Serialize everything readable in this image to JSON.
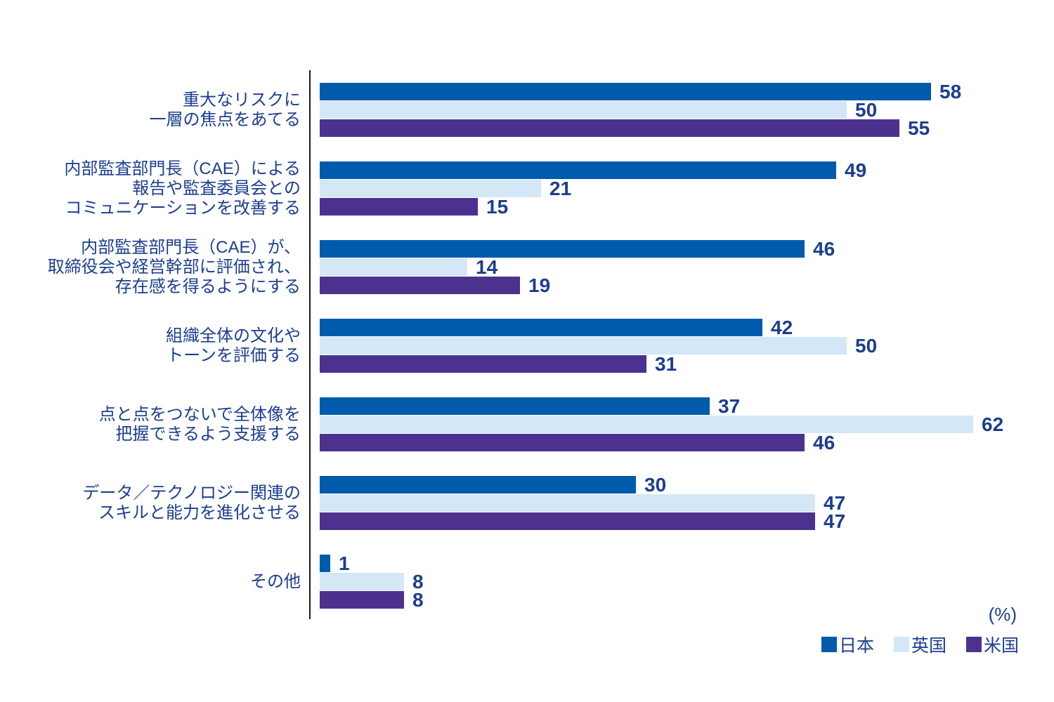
{
  "page": {
    "background": "#FFFFFF"
  },
  "colors": {
    "navy_text": "#1C3E8F",
    "axis_line": "#1A1A1A",
    "japan_blue": "#005BAC",
    "uk_light_blue": "#D3E7F6",
    "us_purple": "#4C318F"
  },
  "chart_data": {
    "type": "bar",
    "orientation": "horizontal",
    "title": "",
    "unit_display": "(%)",
    "xlim": [
      0,
      62
    ],
    "grid": false,
    "legend_position": "bottom-right",
    "value_labels": true,
    "categories": [
      {
        "lines": [
          "重大なリスクに",
          "一層の焦点をあてる"
        ]
      },
      {
        "lines": [
          "内部監査部門長（CAE）による",
          "報告や監査委員会との",
          "コミュニケーションを改善する"
        ]
      },
      {
        "lines": [
          "内部監査部門長（CAE）が、",
          "取締役会や経営幹部に評価され、",
          "存在感を得るようにする"
        ]
      },
      {
        "lines": [
          "組織全体の文化や",
          "トーンを評価する"
        ]
      },
      {
        "lines": [
          "点と点をつないで全体像を",
          "把握できるよう支援する"
        ]
      },
      {
        "lines": [
          "データ／テクノロジー関連の",
          "スキルと能力を進化させる"
        ]
      },
      {
        "lines": [
          "その他"
        ]
      }
    ],
    "series": [
      {
        "key": "japan",
        "name": "日本",
        "color": "#005BAC",
        "values": [
          58,
          49,
          46,
          42,
          37,
          30,
          1
        ]
      },
      {
        "key": "uk",
        "name": "英国",
        "color": "#D3E7F6",
        "values": [
          50,
          21,
          14,
          50,
          62,
          47,
          8
        ]
      },
      {
        "key": "us",
        "name": "米国",
        "color": "#4C318F",
        "values": [
          55,
          15,
          19,
          31,
          46,
          47,
          8
        ]
      }
    ]
  }
}
